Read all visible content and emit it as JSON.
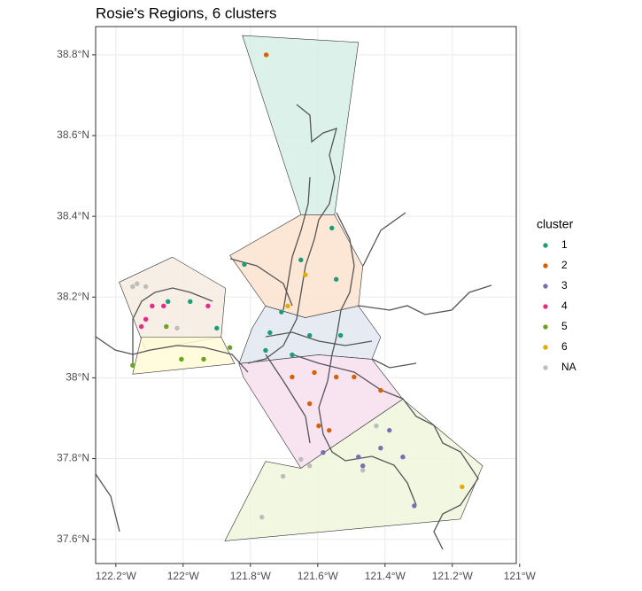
{
  "chart_data": {
    "type": "map",
    "title": "Rosie's Regions, 6 clusters",
    "legend_title": "cluster",
    "xlim": [
      -122.26,
      -121.01
    ],
    "ylim": [
      37.54,
      38.87
    ],
    "xticks": [
      {
        "value": -122.2,
        "label": "122.2°W"
      },
      {
        "value": -122.0,
        "label": "122°W"
      },
      {
        "value": -121.8,
        "label": "121.8°W"
      },
      {
        "value": -121.6,
        "label": "121.6°W"
      },
      {
        "value": -121.4,
        "label": "121.4°W"
      },
      {
        "value": -121.2,
        "label": "121.2°W"
      },
      {
        "value": -121.0,
        "label": "121°W"
      }
    ],
    "yticks": [
      {
        "value": 37.6,
        "label": "37.6°N"
      },
      {
        "value": 37.8,
        "label": "37.8°N"
      },
      {
        "value": 38.0,
        "label": "38°N"
      },
      {
        "value": 38.2,
        "label": "38.2°N"
      },
      {
        "value": 38.4,
        "label": "38.4°N"
      },
      {
        "value": 38.6,
        "label": "38.6°N"
      },
      {
        "value": 38.8,
        "label": "38.8°N"
      }
    ],
    "grid": true,
    "regions": [
      {
        "color": "#d6efe6",
        "lon": [
          -121.824,
          -121.479,
          -121.55,
          -121.65
        ],
        "lat": [
          38.848,
          38.831,
          38.404,
          38.404
        ]
      },
      {
        "color": "#fbe3d0",
        "lon": [
          -121.861,
          -121.65,
          -121.55,
          -121.466,
          -121.479,
          -121.637,
          -121.755
        ],
        "lat": [
          38.303,
          38.404,
          38.404,
          38.277,
          38.178,
          38.149,
          38.178
        ]
      },
      {
        "color": "#e2e6f1",
        "lon": [
          -121.755,
          -121.637,
          -121.479,
          -121.413,
          -121.439,
          -121.597,
          -121.834,
          -121.795
        ],
        "lat": [
          38.178,
          38.149,
          38.178,
          38.101,
          38.046,
          38.057,
          38.035,
          38.123
        ]
      },
      {
        "color": "#f7dfee",
        "lon": [
          -121.834,
          -121.597,
          -121.439,
          -121.347,
          -121.65,
          -121.821
        ],
        "lat": [
          38.035,
          38.057,
          38.046,
          37.947,
          37.776,
          38.002
        ]
      },
      {
        "color": "#eef6dc",
        "lon": [
          -121.347,
          -121.11,
          -121.176,
          -121.876,
          -121.755,
          -121.65
        ],
        "lat": [
          37.947,
          37.782,
          37.65,
          37.596,
          37.793,
          37.776
        ]
      },
      {
        "color": "#f6ece0",
        "lon": [
          -122.19,
          -122.032,
          -121.874,
          -121.887,
          -122.111
        ],
        "lat": [
          38.237,
          38.299,
          38.222,
          38.101,
          38.068
        ]
      },
      {
        "color": "#fffad6",
        "lon": [
          -122.124,
          -121.887,
          -121.847,
          -122.15
        ],
        "lat": [
          38.101,
          38.101,
          38.035,
          38.009
        ]
      }
    ],
    "series": [
      {
        "name": "1",
        "color": "#1b9e77",
        "x": [
          -121.558,
          -121.818,
          -121.65,
          -121.545,
          -121.708,
          -121.742,
          -121.624,
          -121.532,
          -121.755,
          -121.979,
          -122.045,
          -121.9,
          -121.676
        ],
        "values": [
          38.371,
          38.281,
          38.292,
          38.244,
          38.163,
          38.112,
          38.105,
          38.105,
          38.068,
          38.189,
          38.189,
          38.123,
          38.057
        ]
      },
      {
        "name": "2",
        "color": "#d95f02",
        "x": [
          -121.753,
          -121.61,
          -121.676,
          -121.545,
          -121.413,
          -121.597,
          -121.566,
          -121.492,
          -121.624
        ],
        "values": [
          38.8,
          38.013,
          38.002,
          38.002,
          37.969,
          37.881,
          37.87,
          38.002,
          37.936
        ]
      },
      {
        "name": "3",
        "color": "#7570b3",
        "x": [
          -121.584,
          -121.479,
          -121.413,
          -121.347,
          -121.387,
          -121.313,
          -121.466
        ],
        "values": [
          37.815,
          37.804,
          37.826,
          37.804,
          37.87,
          37.683,
          37.782
        ]
      },
      {
        "name": "4",
        "color": "#e7298a",
        "x": [
          -122.111,
          -122.092,
          -122.058,
          -121.926,
          -122.124
        ],
        "values": [
          38.145,
          38.178,
          38.178,
          38.178,
          38.127
        ]
      },
      {
        "name": "5",
        "color": "#66a61e",
        "x": [
          -122.05,
          -122.15,
          -122.005,
          -121.939,
          -121.861
        ],
        "values": [
          38.127,
          38.031,
          38.046,
          38.046,
          38.075
        ]
      },
      {
        "name": "6",
        "color": "#e6ab02",
        "x": [
          -121.637,
          -121.689,
          -121.171
        ],
        "values": [
          38.255,
          38.178,
          37.73
        ]
      },
      {
        "name": "NA",
        "color": "#bdbdbd",
        "x": [
          -122.15,
          -122.137,
          -122.111,
          -121.65,
          -121.624,
          -121.703,
          -121.766,
          -121.426,
          -121.466,
          -122.018
        ],
        "values": [
          38.226,
          38.233,
          38.226,
          37.798,
          37.782,
          37.756,
          37.655,
          37.881,
          37.771,
          38.123
        ]
      }
    ]
  }
}
